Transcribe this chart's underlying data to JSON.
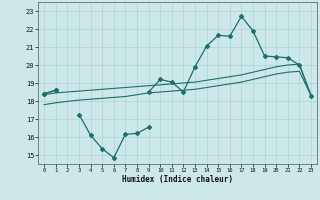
{
  "xlabel": "Humidex (Indice chaleur)",
  "x": [
    0,
    1,
    2,
    3,
    4,
    5,
    6,
    7,
    8,
    9,
    10,
    11,
    12,
    13,
    14,
    15,
    16,
    17,
    18,
    19,
    20,
    21,
    22,
    23
  ],
  "curve_main": [
    18.4,
    18.6,
    null,
    null,
    null,
    null,
    null,
    null,
    null,
    18.5,
    19.2,
    19.05,
    18.5,
    19.9,
    21.05,
    21.65,
    21.6,
    22.7,
    21.9,
    20.5,
    20.45,
    20.4,
    20.0,
    18.3
  ],
  "curve_dip": [
    18.4,
    18.6,
    null,
    17.25,
    16.1,
    15.35,
    14.85,
    16.15,
    16.2,
    16.55,
    null,
    null,
    null,
    null,
    null,
    null,
    null,
    null,
    null,
    null,
    null,
    null,
    null,
    null
  ],
  "trend_upper": [
    18.35,
    18.45,
    18.5,
    18.55,
    18.6,
    18.65,
    18.7,
    18.75,
    18.8,
    18.85,
    18.9,
    18.95,
    19.0,
    19.05,
    19.15,
    19.25,
    19.35,
    19.45,
    19.6,
    19.75,
    19.9,
    20.0,
    20.05,
    18.3
  ],
  "trend_lower": [
    17.8,
    17.9,
    17.98,
    18.05,
    18.1,
    18.15,
    18.2,
    18.25,
    18.35,
    18.45,
    18.5,
    18.55,
    18.6,
    18.65,
    18.75,
    18.85,
    18.95,
    19.05,
    19.2,
    19.35,
    19.5,
    19.6,
    19.65,
    18.3
  ],
  "color": "#1e6e6a",
  "bg_color": "#cce8e8",
  "grid_color": "#aad4d4",
  "ylim": [
    14.5,
    23.5
  ],
  "yticks": [
    15,
    16,
    17,
    18,
    19,
    20,
    21,
    22,
    23
  ],
  "xlim": [
    -0.5,
    23.5
  ],
  "xticks": [
    0,
    1,
    2,
    3,
    4,
    5,
    6,
    7,
    8,
    9,
    10,
    11,
    12,
    13,
    14,
    15,
    16,
    17,
    18,
    19,
    20,
    21,
    22,
    23
  ]
}
